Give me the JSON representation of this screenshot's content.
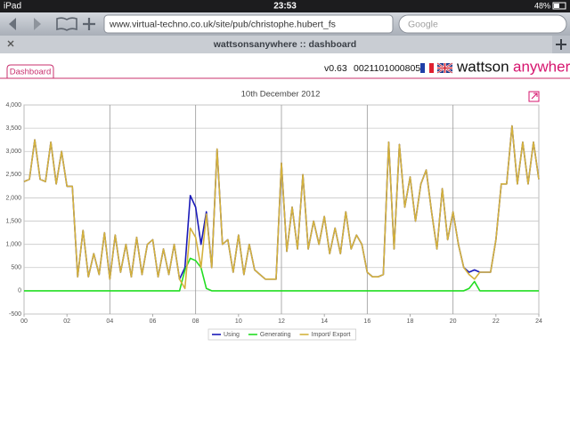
{
  "status_bar": {
    "device": "iPad",
    "time": "23:53",
    "battery": "48%"
  },
  "toolbar": {
    "url": "www.virtual-techno.co.uk/site/pub/christophe.hubert_fs",
    "search_placeholder": "Google"
  },
  "tab": {
    "title": "wattsonsanywhere :: dashboard"
  },
  "page": {
    "tab_label": "Dashboard",
    "version": "v0.63",
    "serial": "0021101000805",
    "brand_1": "wattson",
    "brand_2": "anywhere"
  },
  "chart_data": {
    "type": "line",
    "title": "10th December 2012",
    "legend": "bottom",
    "grid": true,
    "x": [
      0,
      0.25,
      0.5,
      0.75,
      1,
      1.25,
      1.5,
      1.75,
      2,
      2.25,
      2.5,
      2.75,
      3,
      3.25,
      3.5,
      3.75,
      4,
      4.25,
      4.5,
      4.75,
      5,
      5.25,
      5.5,
      5.75,
      6,
      6.25,
      6.5,
      6.75,
      7,
      7.25,
      7.5,
      7.75,
      8,
      8.25,
      8.5,
      8.75,
      9,
      9.25,
      9.5,
      9.75,
      10,
      10.25,
      10.5,
      10.75,
      11,
      11.25,
      11.5,
      11.75,
      12,
      12.25,
      12.5,
      12.75,
      13,
      13.25,
      13.5,
      13.75,
      14,
      14.25,
      14.5,
      14.75,
      15,
      15.25,
      15.5,
      15.75,
      16,
      16.25,
      16.5,
      16.75,
      17,
      17.25,
      17.5,
      17.75,
      18,
      18.25,
      18.5,
      18.75,
      19,
      19.25,
      19.5,
      19.75,
      20,
      20.25,
      20.5,
      20.75,
      21,
      21.25,
      21.5,
      21.75,
      22,
      22.25,
      22.5,
      22.75,
      23,
      23.25,
      23.5,
      23.75,
      24
    ],
    "series": [
      {
        "name": "Using",
        "color": "#1a1ab8",
        "values": [
          2350,
          2400,
          3250,
          2400,
          2350,
          3200,
          2300,
          3000,
          2250,
          2250,
          300,
          1300,
          300,
          800,
          350,
          1250,
          250,
          1200,
          400,
          1000,
          300,
          1150,
          350,
          1000,
          1100,
          300,
          900,
          350,
          1000,
          250,
          500,
          2050,
          1800,
          1000,
          1700,
          500,
          3050,
          1000,
          1100,
          400,
          1200,
          350,
          1000,
          450,
          350,
          250,
          250,
          250,
          2750,
          850,
          1800,
          900,
          2500,
          900,
          1500,
          1000,
          1600,
          800,
          1350,
          800,
          1700,
          900,
          1200,
          1000,
          400,
          300,
          300,
          350,
          3200,
          900,
          3150,
          1800,
          2450,
          1500,
          2300,
          2600,
          1700,
          900,
          2200,
          1100,
          1700,
          1000,
          500,
          400,
          450,
          400,
          400,
          400,
          1100,
          2300,
          2300,
          3550,
          2300,
          3200,
          2300,
          3200,
          2400
        ]
      },
      {
        "name": "Generating",
        "color": "#22dd22",
        "values": [
          0,
          0,
          0,
          0,
          0,
          0,
          0,
          0,
          0,
          0,
          0,
          0,
          0,
          0,
          0,
          0,
          0,
          0,
          0,
          0,
          0,
          0,
          0,
          0,
          0,
          0,
          0,
          0,
          0,
          0,
          450,
          700,
          650,
          500,
          50,
          0,
          0,
          0,
          0,
          0,
          0,
          0,
          0,
          0,
          0,
          0,
          0,
          0,
          0,
          0,
          0,
          0,
          0,
          0,
          0,
          0,
          0,
          0,
          0,
          0,
          0,
          0,
          0,
          0,
          0,
          0,
          0,
          0,
          0,
          0,
          0,
          0,
          0,
          0,
          0,
          0,
          0,
          0,
          0,
          0,
          0,
          0,
          0,
          50,
          200,
          0,
          0,
          0,
          0,
          0,
          0,
          0,
          0,
          0,
          0,
          0,
          0
        ]
      },
      {
        "name": "Import/ Export",
        "color": "#d4b23c",
        "values": [
          2350,
          2400,
          3250,
          2400,
          2350,
          3200,
          2300,
          3000,
          2250,
          2250,
          300,
          1300,
          300,
          800,
          350,
          1250,
          250,
          1200,
          400,
          1000,
          300,
          1150,
          350,
          1000,
          1100,
          300,
          900,
          350,
          1000,
          250,
          50,
          1350,
          1150,
          500,
          1650,
          500,
          3050,
          1000,
          1100,
          400,
          1200,
          350,
          1000,
          450,
          350,
          250,
          250,
          250,
          2750,
          850,
          1800,
          900,
          2500,
          900,
          1500,
          1000,
          1600,
          800,
          1350,
          800,
          1700,
          900,
          1200,
          1000,
          400,
          300,
          300,
          350,
          3200,
          900,
          3150,
          1800,
          2450,
          1500,
          2300,
          2600,
          1700,
          900,
          2200,
          1100,
          1700,
          1000,
          500,
          350,
          250,
          400,
          400,
          400,
          1100,
          2300,
          2300,
          3550,
          2300,
          3200,
          2300,
          3200,
          2400
        ]
      }
    ],
    "xlim": [
      0,
      24
    ],
    "xticks": [
      {
        "value": 0,
        "label": "00"
      },
      {
        "value": 2,
        "label": "02"
      },
      {
        "value": 4,
        "label": "04"
      },
      {
        "value": 6,
        "label": "06"
      },
      {
        "value": 8,
        "label": "08"
      },
      10,
      12,
      14,
      16,
      18,
      20,
      22,
      24
    ],
    "ylim": [
      -500,
      4000
    ],
    "yticks": [
      -500,
      0,
      500,
      {
        "value": 1000,
        "label": "1,000"
      },
      {
        "value": 1500,
        "label": "1,500"
      },
      {
        "value": 2000,
        "label": "2,000"
      },
      {
        "value": 2500,
        "label": "2,500"
      },
      {
        "value": 3000,
        "label": "3,000"
      },
      {
        "value": 3500,
        "label": "3,500"
      },
      {
        "value": 4000,
        "label": "4,000"
      }
    ]
  }
}
